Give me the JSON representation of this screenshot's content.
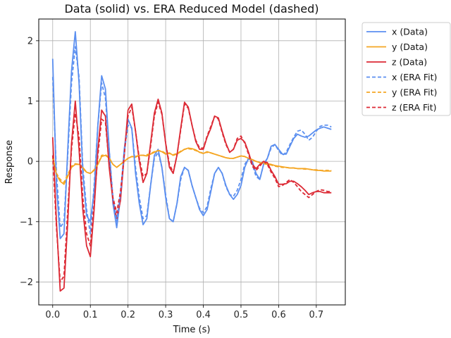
{
  "chart_data": {
    "type": "line",
    "title": "Data (solid) vs. ERA Reduced Model (dashed)",
    "xlabel": "Time (s)",
    "ylabel": "Response",
    "xlim": [
      -0.037,
      0.777
    ],
    "ylim": [
      -2.38,
      2.36
    ],
    "xticks": [
      0.0,
      0.1,
      0.2,
      0.3,
      0.4,
      0.5,
      0.6,
      0.7
    ],
    "xtick_labels": [
      "0.0",
      "0.1",
      "0.2",
      "0.3",
      "0.4",
      "0.5",
      "0.6",
      "0.7"
    ],
    "yticks": [
      -2,
      -1,
      0,
      1,
      2
    ],
    "ytick_labels": [
      "−2",
      "−1",
      "0",
      "1",
      "2"
    ],
    "grid": true,
    "legend_position": "outside-top-right",
    "x": [
      0.0,
      0.01,
      0.02,
      0.03,
      0.04,
      0.05,
      0.06,
      0.07,
      0.08,
      0.09,
      0.1,
      0.11,
      0.12,
      0.13,
      0.14,
      0.15,
      0.16,
      0.17,
      0.18,
      0.19,
      0.2,
      0.21,
      0.22,
      0.23,
      0.24,
      0.25,
      0.26,
      0.27,
      0.28,
      0.29,
      0.3,
      0.31,
      0.32,
      0.33,
      0.34,
      0.35,
      0.36,
      0.37,
      0.38,
      0.39,
      0.4,
      0.41,
      0.42,
      0.43,
      0.44,
      0.45,
      0.46,
      0.47,
      0.48,
      0.49,
      0.5,
      0.51,
      0.52,
      0.53,
      0.54,
      0.55,
      0.56,
      0.57,
      0.58,
      0.59,
      0.6,
      0.61,
      0.62,
      0.63,
      0.64,
      0.65,
      0.66,
      0.67,
      0.68,
      0.69,
      0.7,
      0.71,
      0.72,
      0.73,
      0.74
    ],
    "series": [
      {
        "name": "x (Data)",
        "color": "#5b8ff0",
        "dash": false,
        "values": [
          1.7,
          -0.4,
          -1.28,
          -1.2,
          0.2,
          1.5,
          2.15,
          1.3,
          -0.2,
          -0.9,
          -1.0,
          -0.5,
          0.6,
          1.42,
          1.2,
          0.2,
          -0.7,
          -1.1,
          -0.6,
          0.2,
          0.7,
          0.55,
          -0.2,
          -0.7,
          -1.05,
          -0.95,
          -0.4,
          0.1,
          0.2,
          -0.1,
          -0.6,
          -0.95,
          -1.0,
          -0.7,
          -0.25,
          -0.1,
          -0.15,
          -0.4,
          -0.6,
          -0.8,
          -0.9,
          -0.8,
          -0.5,
          -0.2,
          -0.1,
          -0.2,
          -0.4,
          -0.55,
          -0.63,
          -0.55,
          -0.4,
          -0.1,
          0.05,
          0.0,
          -0.2,
          -0.3,
          -0.05,
          0.05,
          0.25,
          0.28,
          0.2,
          0.12,
          0.12,
          0.25,
          0.38,
          0.45,
          0.42,
          0.4,
          0.42,
          0.47,
          0.52,
          0.55,
          0.57,
          0.55,
          0.53
        ]
      },
      {
        "name": "y (Data)",
        "color": "#f5a623",
        "dash": false,
        "values": [
          0.05,
          -0.22,
          -0.33,
          -0.38,
          -0.25,
          -0.1,
          -0.05,
          -0.05,
          -0.1,
          -0.18,
          -0.2,
          -0.15,
          -0.05,
          0.08,
          0.1,
          0.05,
          -0.05,
          -0.1,
          -0.05,
          0.0,
          0.05,
          0.08,
          0.07,
          0.1,
          0.1,
          0.09,
          0.12,
          0.15,
          0.18,
          0.16,
          0.12,
          0.14,
          0.1,
          0.12,
          0.16,
          0.2,
          0.22,
          0.21,
          0.19,
          0.15,
          0.13,
          0.16,
          0.14,
          0.12,
          0.1,
          0.08,
          0.06,
          0.05,
          0.05,
          0.07,
          0.09,
          0.08,
          0.05,
          0.03,
          0.0,
          -0.02,
          -0.03,
          -0.04,
          -0.05,
          -0.07,
          -0.08,
          -0.09,
          -0.1,
          -0.11,
          -0.11,
          -0.12,
          -0.12,
          -0.12,
          -0.13,
          -0.14,
          -0.15,
          -0.15,
          -0.16,
          -0.16,
          -0.16
        ]
      },
      {
        "name": "z (Data)",
        "color": "#dc2a35",
        "dash": false,
        "values": [
          0.4,
          -1.0,
          -2.15,
          -2.1,
          -1.0,
          0.3,
          1.0,
          0.2,
          -0.8,
          -1.4,
          -1.58,
          -0.8,
          0.2,
          0.85,
          0.75,
          -0.1,
          -0.65,
          -0.95,
          -0.65,
          0.1,
          0.85,
          0.95,
          0.5,
          0.0,
          -0.35,
          -0.2,
          0.3,
          0.8,
          1.03,
          0.8,
          0.3,
          -0.1,
          -0.2,
          0.1,
          0.55,
          0.98,
          0.9,
          0.6,
          0.33,
          0.2,
          0.2,
          0.4,
          0.55,
          0.75,
          0.72,
          0.5,
          0.3,
          0.15,
          0.2,
          0.35,
          0.38,
          0.32,
          0.15,
          -0.05,
          -0.12,
          -0.05,
          0.0,
          -0.02,
          -0.15,
          -0.25,
          -0.38,
          -0.38,
          -0.37,
          -0.33,
          -0.33,
          -0.37,
          -0.42,
          -0.48,
          -0.55,
          -0.52,
          -0.5,
          -0.5,
          -0.52,
          -0.52,
          -0.52
        ]
      },
      {
        "name": "x (ERA Fit)",
        "color": "#5b8ff0",
        "dash": true,
        "values": [
          1.4,
          -0.2,
          -1.1,
          -1.0,
          0.1,
          1.3,
          1.9,
          1.4,
          -0.1,
          -0.8,
          -1.2,
          -0.4,
          0.6,
          1.3,
          1.05,
          0.2,
          -0.6,
          -1.0,
          -0.55,
          0.15,
          0.6,
          0.55,
          -0.1,
          -0.6,
          -0.95,
          -0.9,
          -0.4,
          0.05,
          0.15,
          -0.1,
          -0.55,
          -0.95,
          -1.0,
          -0.7,
          -0.3,
          -0.1,
          -0.15,
          -0.4,
          -0.6,
          -0.78,
          -0.85,
          -0.75,
          -0.45,
          -0.2,
          -0.1,
          -0.2,
          -0.42,
          -0.55,
          -0.58,
          -0.48,
          -0.3,
          -0.05,
          0.05,
          -0.05,
          -0.25,
          -0.3,
          -0.05,
          0.05,
          0.22,
          0.28,
          0.18,
          0.1,
          0.15,
          0.28,
          0.4,
          0.5,
          0.52,
          0.45,
          0.35,
          0.4,
          0.5,
          0.58,
          0.6,
          0.6,
          0.57
        ]
      },
      {
        "name": "y (ERA Fit)",
        "color": "#f5a623",
        "dash": true,
        "values": [
          0.08,
          -0.2,
          -0.3,
          -0.35,
          -0.22,
          -0.08,
          -0.04,
          -0.05,
          -0.12,
          -0.18,
          -0.2,
          -0.14,
          -0.04,
          0.1,
          0.11,
          0.06,
          -0.05,
          -0.1,
          -0.05,
          0.0,
          0.05,
          0.08,
          0.08,
          0.1,
          0.1,
          0.11,
          0.13,
          0.16,
          0.18,
          0.17,
          0.13,
          0.13,
          0.11,
          0.13,
          0.17,
          0.2,
          0.21,
          0.2,
          0.18,
          0.15,
          0.14,
          0.15,
          0.14,
          0.12,
          0.1,
          0.08,
          0.06,
          0.05,
          0.05,
          0.07,
          0.09,
          0.08,
          0.05,
          0.02,
          0.0,
          -0.02,
          -0.04,
          -0.05,
          -0.06,
          -0.08,
          -0.09,
          -0.1,
          -0.1,
          -0.11,
          -0.11,
          -0.12,
          -0.12,
          -0.13,
          -0.13,
          -0.14,
          -0.14,
          -0.15,
          -0.15,
          -0.15,
          -0.15
        ]
      },
      {
        "name": "z (ERA Fit)",
        "color": "#dc2a35",
        "dash": true,
        "values": [
          0.1,
          -1.1,
          -2.0,
          -1.9,
          -0.8,
          0.2,
          0.8,
          0.4,
          -0.6,
          -1.2,
          -1.4,
          -0.7,
          0.1,
          0.7,
          0.65,
          -0.05,
          -0.6,
          -0.85,
          -0.5,
          0.1,
          0.75,
          0.9,
          0.5,
          0.05,
          -0.25,
          -0.2,
          0.25,
          0.75,
          0.98,
          0.78,
          0.3,
          -0.05,
          -0.18,
          0.1,
          0.52,
          0.95,
          0.88,
          0.6,
          0.35,
          0.22,
          0.22,
          0.42,
          0.58,
          0.75,
          0.7,
          0.48,
          0.28,
          0.15,
          0.2,
          0.38,
          0.42,
          0.3,
          0.12,
          -0.08,
          -0.15,
          -0.08,
          0.0,
          -0.05,
          -0.18,
          -0.28,
          -0.42,
          -0.4,
          -0.35,
          -0.3,
          -0.35,
          -0.42,
          -0.5,
          -0.55,
          -0.6,
          -0.55,
          -0.5,
          -0.47,
          -0.48,
          -0.5,
          -0.5
        ]
      }
    ]
  }
}
